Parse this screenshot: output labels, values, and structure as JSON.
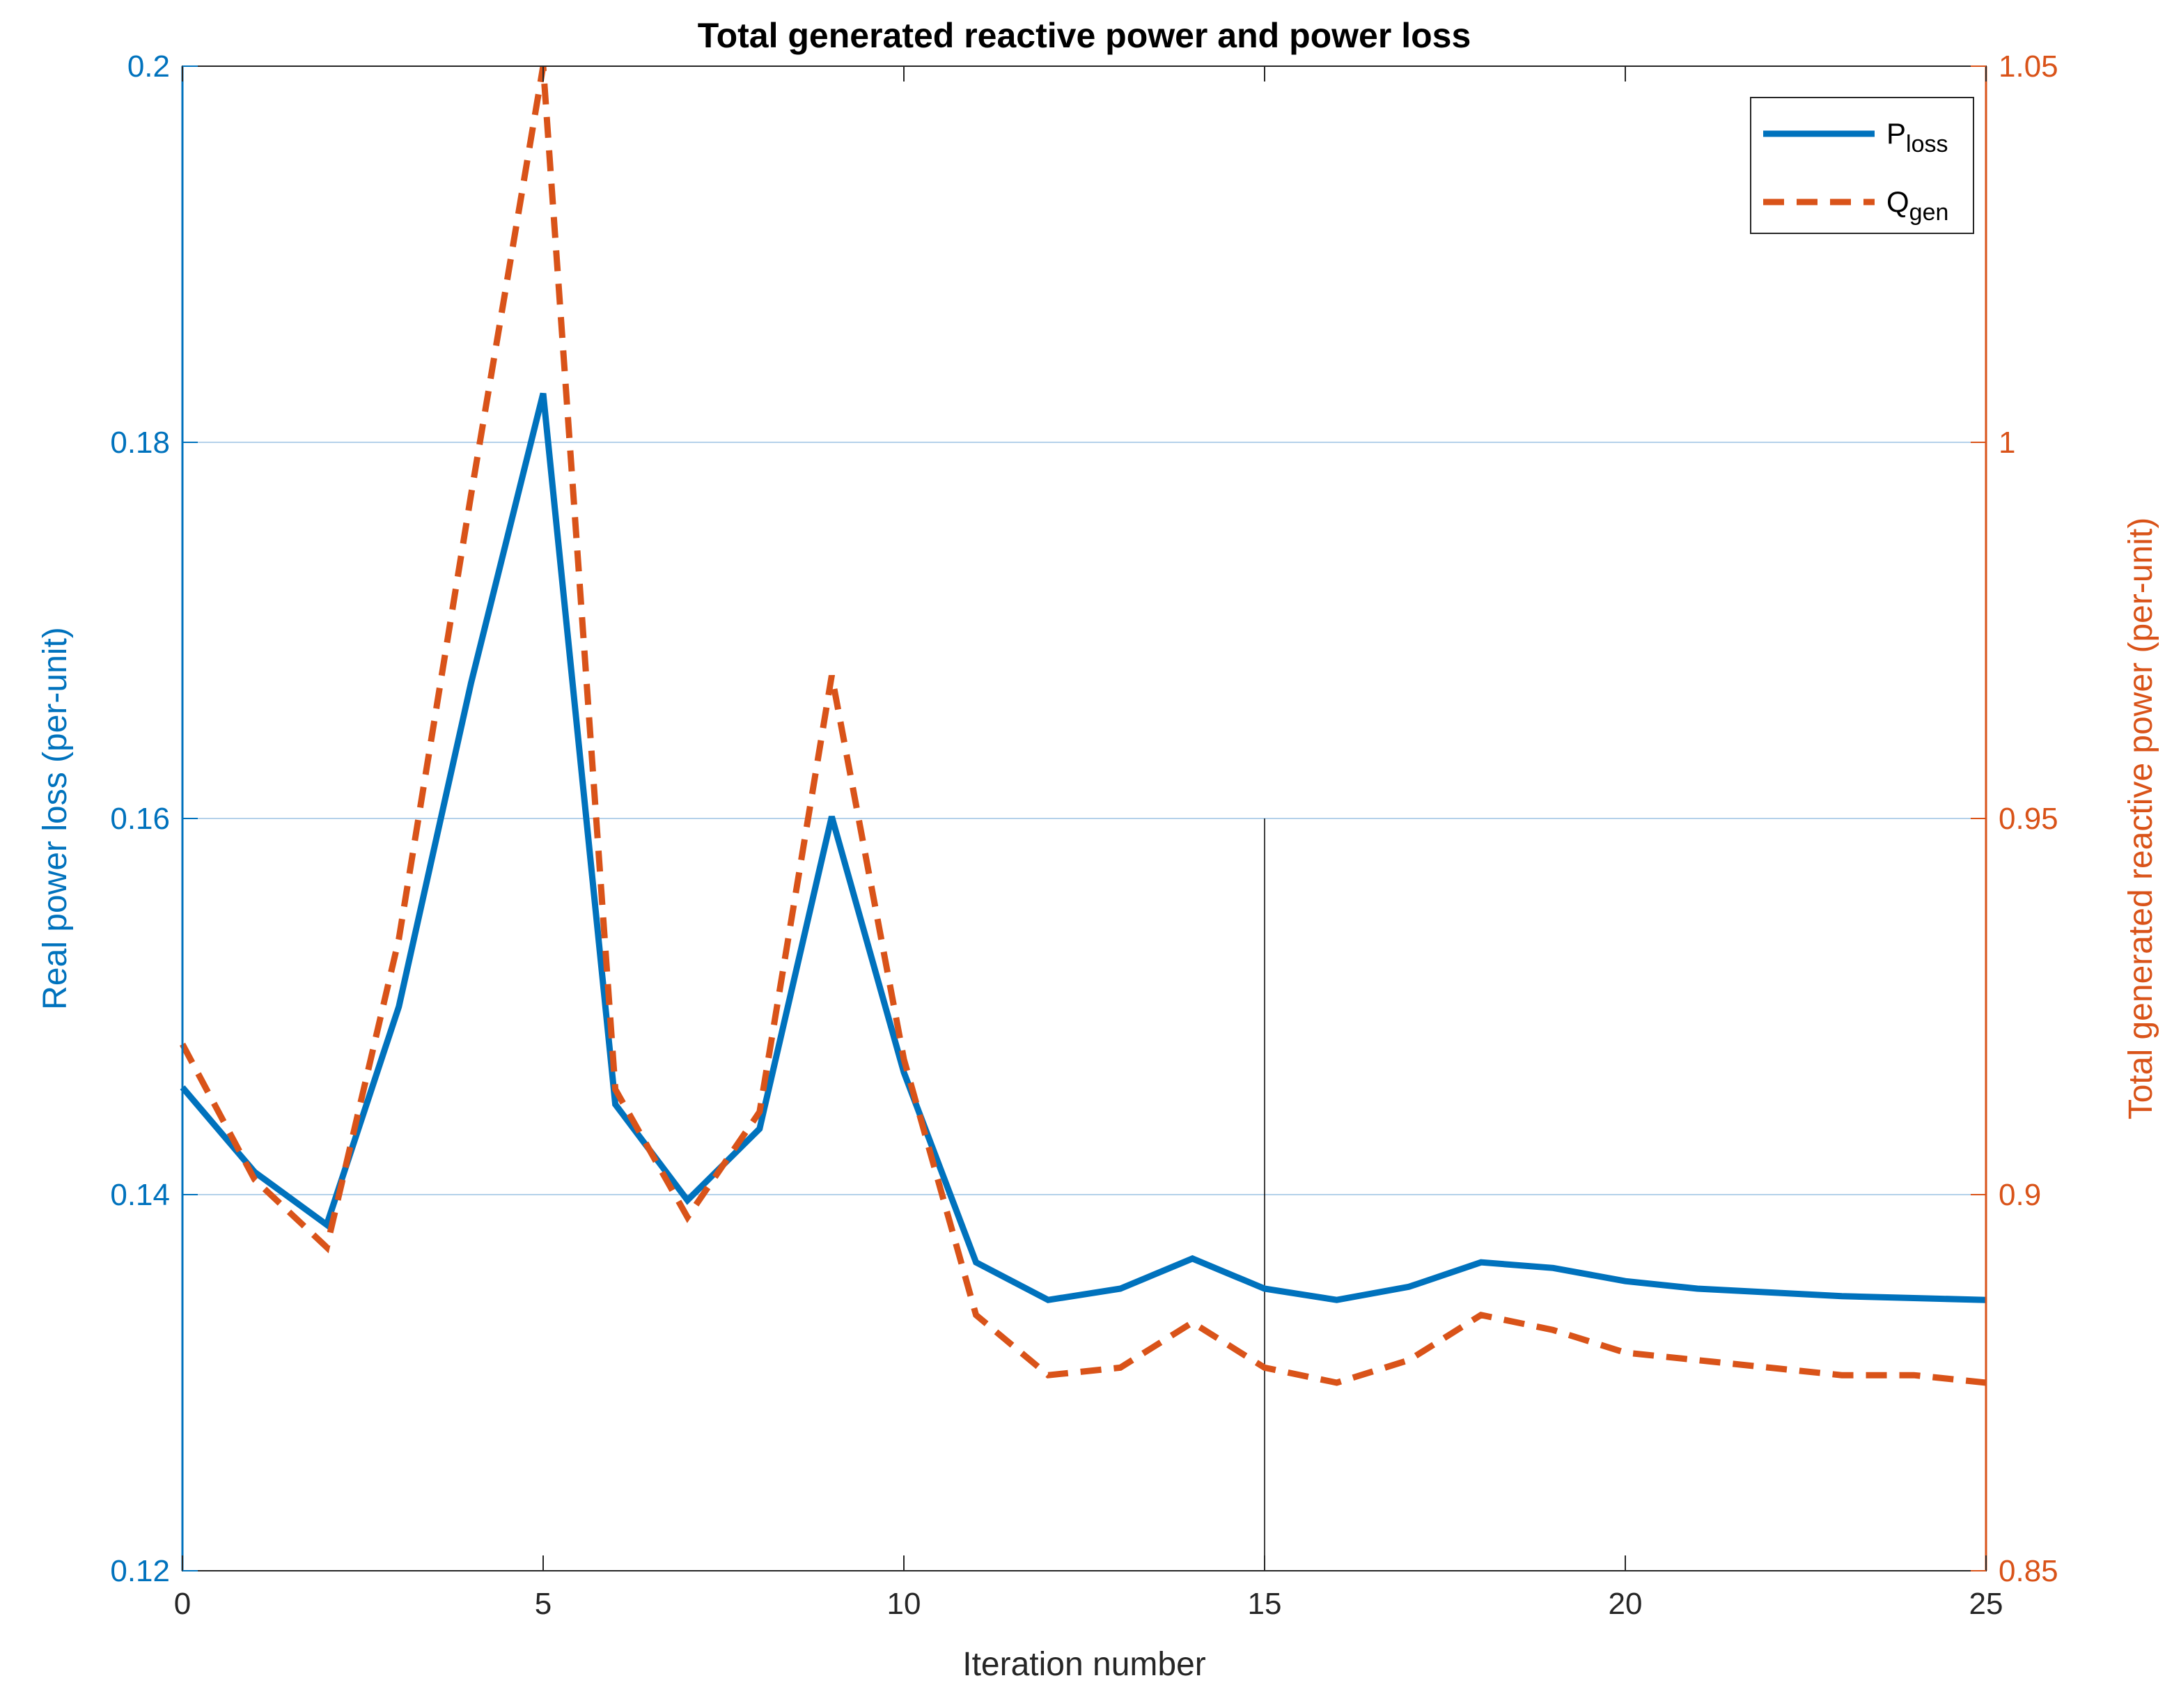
{
  "chart_data": {
    "type": "line",
    "title": "Total generated reactive power and power loss",
    "xlabel": "Iteration number",
    "ylabel_left": "Real power loss (per-unit)",
    "ylabel_right": "Total generated reactive power (per-unit)",
    "xlim": [
      0,
      25
    ],
    "ylim_left": [
      0.12,
      0.2
    ],
    "ylim_right": [
      0.85,
      1.05
    ],
    "x_ticks": [
      "0",
      "5",
      "10",
      "15",
      "20",
      "25"
    ],
    "y_left_ticks": [
      "0.12",
      "0.14",
      "0.16",
      "0.18",
      "0.2"
    ],
    "y_right_ticks": [
      "0.85",
      "0.9",
      "0.95",
      "1",
      "1.05"
    ],
    "grid": "horizontal",
    "legend_position": "top-right",
    "colors": {
      "left_axis": "#0072BD",
      "right_axis": "#D95319",
      "grid": "#9cc2e3",
      "axes": "#262626"
    },
    "series": [
      {
        "name": "P",
        "subscript": "loss",
        "axis": "left",
        "style": "solid",
        "color": "#0072BD",
        "x": [
          0,
          1,
          2,
          3,
          4,
          5,
          6,
          7,
          8,
          9,
          10,
          11,
          12,
          13,
          14,
          15,
          16,
          17,
          18,
          19,
          20,
          21,
          22,
          23,
          24,
          25
        ],
        "values": [
          0.1457,
          0.1412,
          0.1384,
          0.15,
          0.1672,
          0.1826,
          0.1448,
          0.1397,
          0.1435,
          0.1601,
          0.1465,
          0.1364,
          0.1344,
          0.135,
          0.1366,
          0.135,
          0.1344,
          0.1351,
          0.1364,
          0.1361,
          0.1354,
          0.135,
          0.1348,
          0.1346,
          0.1345,
          0.1344
        ]
      },
      {
        "name": "Q",
        "subscript": "gen",
        "axis": "right",
        "style": "dashed",
        "color": "#D95319",
        "x": [
          0,
          1,
          2,
          3,
          4,
          5,
          6,
          7,
          8,
          9,
          10,
          11,
          12,
          13,
          14,
          15,
          16,
          17,
          18,
          19,
          20,
          21,
          22,
          23,
          24,
          25
        ],
        "values": [
          0.92,
          0.902,
          0.893,
          0.934,
          0.993,
          1.05,
          0.914,
          0.897,
          0.911,
          0.969,
          0.918,
          0.884,
          0.876,
          0.877,
          0.883,
          0.877,
          0.875,
          0.878,
          0.884,
          0.882,
          0.879,
          0.878,
          0.877,
          0.876,
          0.876,
          0.875
        ]
      }
    ],
    "annotations": [
      {
        "type": "vertical-line",
        "x": 15,
        "y_left_from": 0.12,
        "y_left_to": 0.16,
        "color": "#000000"
      }
    ]
  }
}
